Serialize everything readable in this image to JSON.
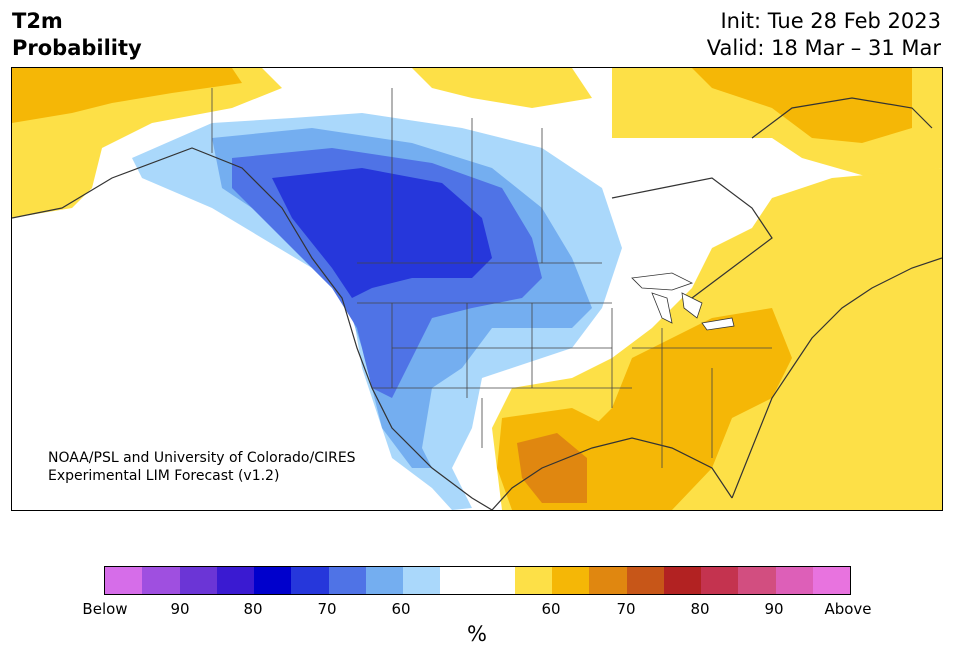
{
  "header": {
    "variable": "T2m",
    "product": "Probability",
    "init": "Init: Tue 28 Feb 2023",
    "valid": "Valid: 18 Mar – 31 Mar"
  },
  "credit": {
    "line1": "NOAA/PSL and University of Colorado/CIRES",
    "line2": "Experimental LIM Forecast (v1.2)"
  },
  "colorbar": {
    "unit": "%",
    "colors": [
      "#d66de9",
      "#9f4fe0",
      "#6b35d6",
      "#3a1ad1",
      "#0000cc",
      "#2637db",
      "#4f73e6",
      "#74aef0",
      "#aad8fb",
      "#ffffff",
      "#ffffff",
      "#fde047",
      "#f5b706",
      "#e08710",
      "#c75618",
      "#b22222",
      "#c4334f",
      "#d24e80",
      "#dd5fb8",
      "#e873df"
    ],
    "tick_labels": [
      "Below",
      "90",
      "80",
      "70",
      "60",
      "60",
      "70",
      "80",
      "90",
      "Above"
    ]
  },
  "map": {
    "region": "North America",
    "below_colors": [
      "#aad8fb",
      "#74aef0",
      "#4f73e6",
      "#2637db"
    ],
    "above_colors": [
      "#fde047",
      "#f5b706",
      "#e08710"
    ]
  }
}
